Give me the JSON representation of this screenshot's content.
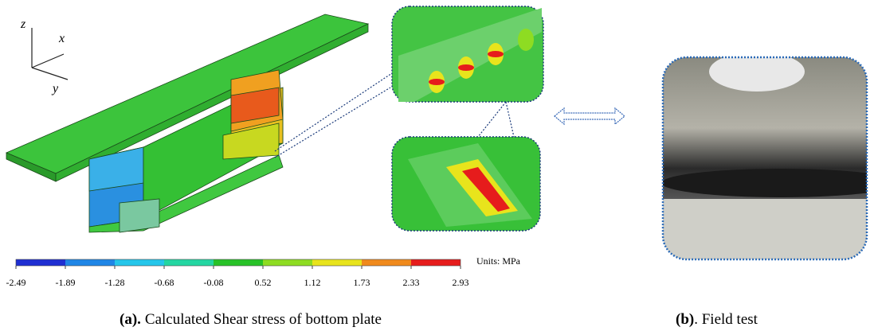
{
  "axes_labels": {
    "z": "z",
    "x": "x",
    "y": "y"
  },
  "colorbar": {
    "units": "Units: MPa",
    "ticks": [
      "-2.49",
      "-1.89",
      "-1.28",
      "-0.68",
      "-0.08",
      "0.52",
      "1.12",
      "1.73",
      "2.33",
      "2.93"
    ],
    "colors": [
      "#1f2fd2",
      "#1f86e6",
      "#25c6ea",
      "#24d6a2",
      "#28c228",
      "#8edc22",
      "#e8e41c",
      "#f08a1c",
      "#e61c1c"
    ]
  },
  "captions": {
    "a": {
      "label": "(a).",
      "text": "Calculated Shear stress of bottom plate"
    },
    "b": {
      "label": "(b)",
      "text": ". Field test"
    }
  }
}
